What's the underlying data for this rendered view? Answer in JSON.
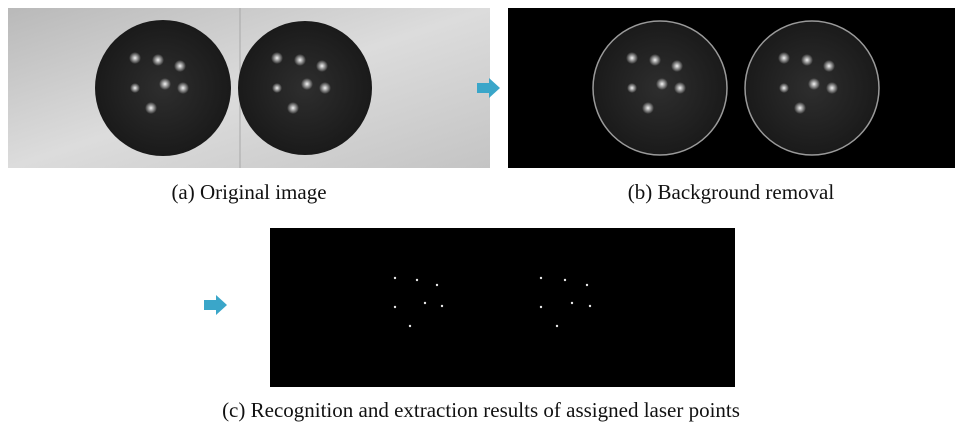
{
  "figure": {
    "panels": [
      {
        "caption": "(a) Original image"
      },
      {
        "caption": "(b) Background removal"
      },
      {
        "caption": "(c) Recognition and extraction results of assigned laser points"
      }
    ]
  }
}
